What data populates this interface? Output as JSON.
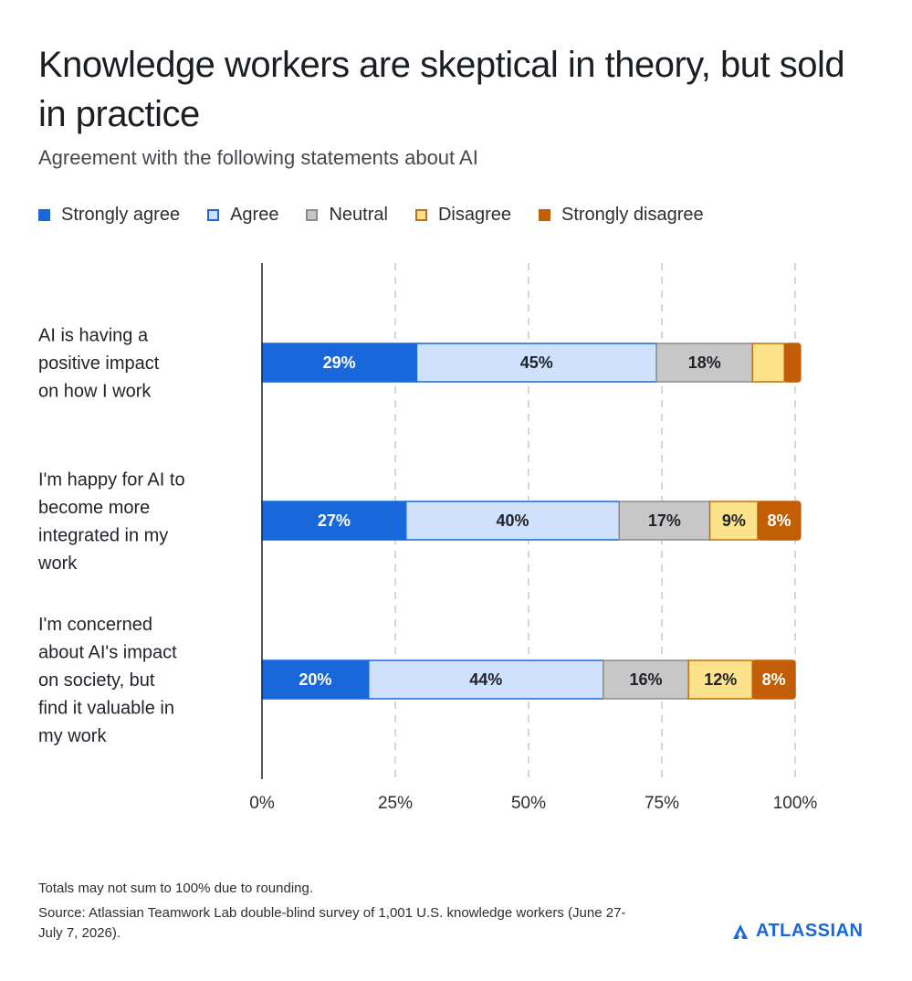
{
  "title": "Knowledge workers are skeptical in theory, but sold in practice",
  "subtitle": "Agreement with the following statements about AI",
  "legend": [
    {
      "label": "Strongly agree",
      "color": "#1868db",
      "border": "#1868db"
    },
    {
      "label": "Agree",
      "color": "#cfe1fd",
      "border": "#1868db"
    },
    {
      "label": "Neutral",
      "color": "#c7c7c7",
      "border": "#8c8c8c"
    },
    {
      "label": "Disagree",
      "color": "#fde28c",
      "border": "#c5700a"
    },
    {
      "label": "Strongly disagree",
      "color": "#c15e06",
      "border": "#c15e06"
    }
  ],
  "chart_data": {
    "type": "bar",
    "orientation": "horizontal",
    "stacked": true,
    "categories": [
      "AI is having a positive impact on how I work",
      "I'm happy for AI to become more integrated in my work",
      "I'm concerned about AI's impact on society, but find it valuable in my work"
    ],
    "category_lines": [
      [
        "AI is having a",
        "positive impact",
        "on how I work"
      ],
      [
        "I'm happy for AI to",
        "become more",
        "integrated in my",
        "work"
      ],
      [
        "I'm concerned",
        "about AI's impact",
        "on society, but",
        "find it valuable in",
        "my work"
      ]
    ],
    "series": [
      {
        "name": "Strongly agree",
        "values": [
          29,
          27,
          20
        ],
        "labels": [
          "29%",
          "27%",
          "20%"
        ],
        "color": "#1868db",
        "text": "#ffffff"
      },
      {
        "name": "Agree",
        "values": [
          45,
          40,
          44
        ],
        "labels": [
          "45%",
          "40%",
          "44%"
        ],
        "color": "#cfe1fd",
        "text": "#1f2329"
      },
      {
        "name": "Neutral",
        "values": [
          18,
          17,
          16
        ],
        "labels": [
          "18%",
          "17%",
          "16%"
        ],
        "color": "#c7c7c7",
        "text": "#1f2329"
      },
      {
        "name": "Disagree",
        "values": [
          6,
          9,
          12
        ],
        "labels": [
          "",
          "9%",
          "12%"
        ],
        "color": "#fde28c",
        "text": "#1f2329"
      },
      {
        "name": "Strongly disagree",
        "values": [
          3,
          8,
          8
        ],
        "labels": [
          "",
          "8%",
          "8%"
        ],
        "color": "#c15e06",
        "text": "#ffffff"
      }
    ],
    "xlim": [
      0,
      100
    ],
    "ticks": [
      0,
      25,
      50,
      75,
      100
    ],
    "tick_labels": [
      "0%",
      "25%",
      "50%",
      "75%",
      "100%"
    ],
    "grid": true,
    "legend_position": "top-left"
  },
  "footnotes": {
    "rounding": "Totals may not sum to 100% due to rounding.",
    "source": "Source: Atlassian Teamwork Lab double-blind survey of 1,001 U.S. knowledge workers (June 27-July 7, 2026)."
  },
  "brand": {
    "name": "ATLASSIAN",
    "icon": "atlassian-logo-icon",
    "color": "#1868db"
  }
}
